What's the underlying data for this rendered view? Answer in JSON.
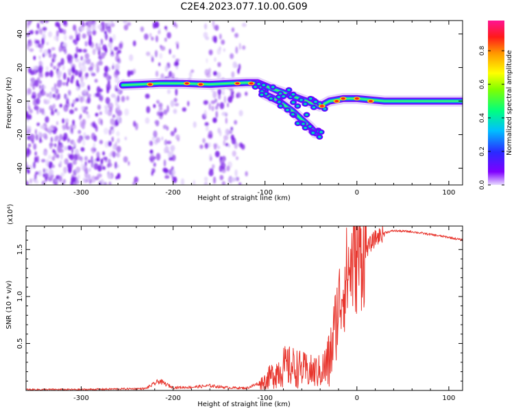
{
  "figure": {
    "title": "C2E4.2023.077.10.00.G09"
  },
  "colors": {
    "snr_line": "#e8362e",
    "spectrogram_scatter": "#7a1ee6",
    "colorbar_stops": [
      "#9b9bff",
      "#7f00ff",
      "#2a2aff",
      "#00bfff",
      "#00ff66",
      "#7fff00",
      "#ffff00",
      "#ff9900",
      "#ff1a1a",
      "#ff1493"
    ]
  },
  "chart_data": [
    {
      "type": "heatmap",
      "name": "spectrogram",
      "xlabel": "Height of straight line (km)",
      "ylabel": "Frequency (Hz)",
      "xlim": [
        -360,
        115
      ],
      "ylim": [
        -50,
        48
      ],
      "x_ticks": [
        -300,
        -200,
        -100,
        0,
        100
      ],
      "y_ticks": [
        -40,
        -20,
        0,
        20,
        40
      ],
      "colorbar": {
        "label": "Normalized spectral amplitude",
        "range": [
          0,
          0.98
        ],
        "ticks": [
          "0.0",
          "0.2",
          "0.4",
          "0.6",
          "0.8"
        ]
      },
      "main_trace": [
        {
          "x": -255,
          "y": 9.5
        },
        {
          "x": -235,
          "y": 10
        },
        {
          "x": -215,
          "y": 10.5
        },
        {
          "x": -190,
          "y": 10.5
        },
        {
          "x": -160,
          "y": 10
        },
        {
          "x": -140,
          "y": 10.5
        },
        {
          "x": -120,
          "y": 11
        },
        {
          "x": -108,
          "y": 11
        },
        {
          "x": -95,
          "y": 8
        },
        {
          "x": -80,
          "y": 5
        },
        {
          "x": -65,
          "y": 2
        },
        {
          "x": -50,
          "y": -1
        },
        {
          "x": -40,
          "y": -3
        },
        {
          "x": -30,
          "y": 0
        },
        {
          "x": -15,
          "y": 1.5
        },
        {
          "x": 0,
          "y": 1.5
        },
        {
          "x": 30,
          "y": 0
        },
        {
          "x": 60,
          "y": 0
        },
        {
          "x": 115,
          "y": 0
        }
      ],
      "branch_trace": [
        {
          "x": -100,
          "y": 4
        },
        {
          "x": -85,
          "y": 0
        },
        {
          "x": -70,
          "y": -6
        },
        {
          "x": -60,
          "y": -11
        },
        {
          "x": -50,
          "y": -16
        },
        {
          "x": -45,
          "y": -19
        }
      ],
      "hot_spots": [
        {
          "x": -225,
          "y": 10
        },
        {
          "x": -185,
          "y": 10.5
        },
        {
          "x": -170,
          "y": 10
        },
        {
          "x": -130,
          "y": 10.5
        },
        {
          "x": -115,
          "y": 10.5
        },
        {
          "x": -38,
          "y": -3
        },
        {
          "x": -22,
          "y": 0
        },
        {
          "x": -15,
          "y": 1.5
        },
        {
          "x": 0,
          "y": 1.5
        },
        {
          "x": 15,
          "y": 0
        }
      ]
    },
    {
      "type": "line",
      "name": "snr",
      "xlabel": "Height of straight line (km)",
      "ylabel": "SNR (10 * v/v)",
      "y_multiplier": "(x10⁴)",
      "xlim": [
        -360,
        115
      ],
      "ylim": [
        0,
        17500
      ],
      "x_ticks": [
        -300,
        -200,
        -100,
        0,
        100
      ],
      "y_ticks": [
        {
          "value": 5000,
          "label": "0.5"
        },
        {
          "value": 10000,
          "label": "1.0"
        },
        {
          "value": 15000,
          "label": "1.5"
        }
      ],
      "envelope": [
        {
          "x": -360,
          "y": 100
        },
        {
          "x": -300,
          "y": 100
        },
        {
          "x": -230,
          "y": 200
        },
        {
          "x": -215,
          "y": 1000
        },
        {
          "x": -200,
          "y": 300
        },
        {
          "x": -180,
          "y": 350
        },
        {
          "x": -160,
          "y": 500
        },
        {
          "x": -140,
          "y": 300
        },
        {
          "x": -120,
          "y": 250
        },
        {
          "x": -100,
          "y": 1000
        },
        {
          "x": -90,
          "y": 1800
        },
        {
          "x": -80,
          "y": 2500
        },
        {
          "x": -70,
          "y": 2500
        },
        {
          "x": -60,
          "y": 2200
        },
        {
          "x": -50,
          "y": 2000
        },
        {
          "x": -40,
          "y": 2000
        },
        {
          "x": -30,
          "y": 3000
        },
        {
          "x": -25,
          "y": 6000
        },
        {
          "x": -20,
          "y": 9000
        },
        {
          "x": -15,
          "y": 11000
        },
        {
          "x": -10,
          "y": 12500
        },
        {
          "x": -5,
          "y": 13500
        },
        {
          "x": 0,
          "y": 14000
        },
        {
          "x": 10,
          "y": 15000
        },
        {
          "x": 20,
          "y": 16200
        },
        {
          "x": 30,
          "y": 16800
        },
        {
          "x": 40,
          "y": 17000
        },
        {
          "x": 60,
          "y": 16900
        },
        {
          "x": 80,
          "y": 16600
        },
        {
          "x": 100,
          "y": 16300
        },
        {
          "x": 115,
          "y": 16000
        }
      ]
    }
  ]
}
